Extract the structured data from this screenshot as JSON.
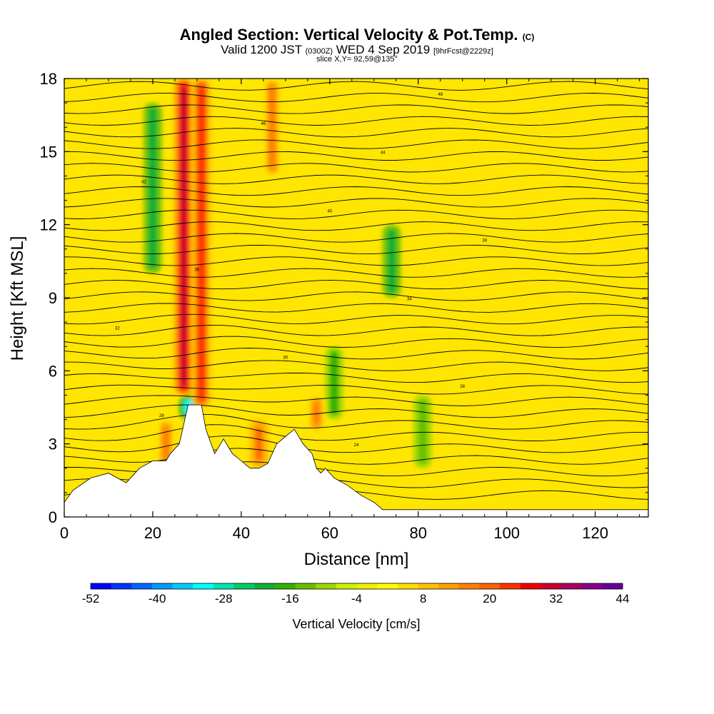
{
  "header": {
    "title_main": "Angled Section: Vertical Velocity & Pot.Temp.",
    "title_tag": "(C)",
    "valid_prefix": "Valid 1200 JST",
    "valid_utc": "(0300Z)",
    "valid_date": "WED 4 Sep 2019",
    "forecast_info": "[9hrFcst@2229z]",
    "slice_info": "slice X,Y= 92,59@135°"
  },
  "chart_data": {
    "type": "heatmap",
    "xlabel": "Distance [nm]",
    "ylabel": "Height [Kft MSL]",
    "xlim": [
      0,
      132
    ],
    "ylim": [
      0,
      18
    ],
    "x_ticks": [
      0,
      20,
      40,
      60,
      80,
      100,
      120
    ],
    "y_ticks": [
      0,
      3,
      6,
      9,
      12,
      15,
      18
    ],
    "colorbar": {
      "title": "Vertical Velocity [cm/s]",
      "min": -52,
      "max": 44,
      "step": 4,
      "tick_labels": [
        "-52",
        "-40",
        "-28",
        "-16",
        "-4",
        "8",
        "20",
        "32",
        "44"
      ],
      "colors": [
        "#0000ff",
        "#0033ff",
        "#0066ff",
        "#0099ff",
        "#00ccff",
        "#00ffff",
        "#00e5b0",
        "#00cc66",
        "#10b030",
        "#33b000",
        "#66c000",
        "#99d800",
        "#ccf000",
        "#f0f000",
        "#ffff00",
        "#ffe000",
        "#ffc000",
        "#ffa000",
        "#ff8000",
        "#ff6000",
        "#ff3000",
        "#f00000",
        "#cc0030",
        "#aa0060",
        "#880088",
        "#660099"
      ]
    },
    "updrafts": [
      {
        "x": 27,
        "z_bottom": 5,
        "z_top": 18,
        "max": 36
      },
      {
        "x": 31,
        "z_bottom": 4.5,
        "z_top": 18,
        "max": 30
      },
      {
        "x": 47,
        "z_bottom": 14,
        "z_top": 18,
        "max": 20
      },
      {
        "x": 44,
        "z_bottom": 2,
        "z_top": 4,
        "max": 24
      },
      {
        "x": 57,
        "z_bottom": 3.5,
        "z_top": 5,
        "max": 22
      },
      {
        "x": 23,
        "z_bottom": 2,
        "z_top": 4,
        "max": 22
      }
    ],
    "downdrafts": [
      {
        "x": 20,
        "z_bottom": 10,
        "z_top": 17,
        "min": -20
      },
      {
        "x": 74,
        "z_bottom": 9,
        "z_top": 12,
        "min": -20
      },
      {
        "x": 28,
        "z_bottom": 4,
        "z_top": 5,
        "min": -32
      },
      {
        "x": 61,
        "z_bottom": 4,
        "z_top": 7,
        "min": -16
      },
      {
        "x": 81,
        "z_bottom": 2,
        "z_top": 5,
        "min": -12
      }
    ],
    "terrain": [
      [
        0,
        0.6
      ],
      [
        2,
        1.1
      ],
      [
        6,
        1.6
      ],
      [
        10,
        1.8
      ],
      [
        14,
        1.4
      ],
      [
        17,
        2.0
      ],
      [
        20,
        2.3
      ],
      [
        23,
        2.3
      ],
      [
        24,
        2.6
      ],
      [
        26,
        3.0
      ],
      [
        28,
        4.6
      ],
      [
        31,
        4.6
      ],
      [
        32,
        3.6
      ],
      [
        34,
        2.6
      ],
      [
        36,
        3.2
      ],
      [
        38,
        2.6
      ],
      [
        40,
        2.3
      ],
      [
        42,
        2.0
      ],
      [
        44,
        2.0
      ],
      [
        46,
        2.2
      ],
      [
        48,
        3.0
      ],
      [
        50,
        3.3
      ],
      [
        52,
        3.6
      ],
      [
        54,
        3.0
      ],
      [
        56,
        2.6
      ],
      [
        57,
        2.0
      ],
      [
        58,
        1.8
      ],
      [
        59,
        2.0
      ],
      [
        61,
        1.6
      ],
      [
        64,
        1.3
      ],
      [
        67,
        0.9
      ],
      [
        70,
        0.6
      ],
      [
        72,
        0.3
      ],
      [
        132,
        0.3
      ]
    ],
    "theta_contour_labels": [
      "22",
      "24",
      "26",
      "28",
      "30",
      "32",
      "34",
      "36",
      "38",
      "40",
      "42",
      "44",
      "46",
      "48"
    ]
  }
}
